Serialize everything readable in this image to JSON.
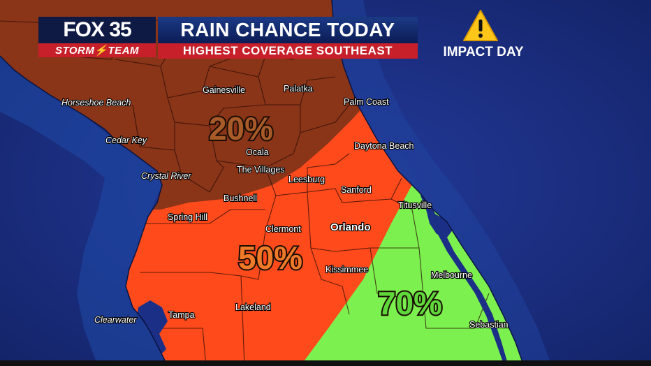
{
  "header": {
    "logo_top": "FOX 35",
    "logo_bottom": "STORM⚡TEAM",
    "title": "RAIN CHANCE TODAY",
    "subtitle": "HIGHEST COVERAGE SOUTHEAST",
    "impact_label": "IMPACT DAY",
    "impact_icon": "warning-triangle-icon"
  },
  "zones": [
    {
      "name": "north",
      "label": "20%",
      "color": "#8a3418"
    },
    {
      "name": "central",
      "label": "50%",
      "color": "#ff4a1c"
    },
    {
      "name": "southeast",
      "label": "70%",
      "color": "#7cf04e"
    }
  ],
  "colors": {
    "ocean": "#1b2f86",
    "north_zone": "#8a3418",
    "central_zone": "#ff4a1c",
    "southeast_zone": "#7cf04e"
  },
  "cities": {
    "gainesville": "Gainesville",
    "palatka": "Palatka",
    "horseshoe_beach": "Horseshoe Beach",
    "palm_coast": "Palm Coast",
    "cedar_key": "Cedar Key",
    "daytona_beach": "Daytona Beach",
    "ocala": "Ocala",
    "the_villages": "The Villages",
    "crystal_river": "Crystal River",
    "leesburg": "Leesburg",
    "sanford": "Sanford",
    "bushnell": "Bushnell",
    "titusville": "Titusville",
    "spring_hill": "Spring Hill",
    "clermont": "Clermont",
    "orlando": "Orlando",
    "kissimmee": "Kissimmee",
    "melbourne": "Melbourne",
    "lakeland": "Lakeland",
    "clearwater": "Clearwater",
    "tampa": "Tampa",
    "sebastian": "Sebastian"
  }
}
